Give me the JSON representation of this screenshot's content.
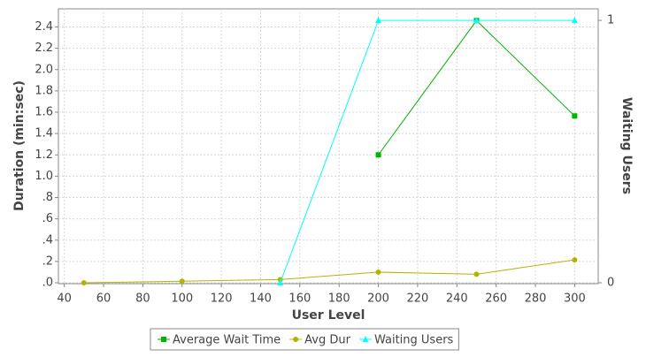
{
  "chart_data": {
    "type": "line",
    "x_label": "User Level",
    "y_label": "Duration (min:sec)",
    "y2_label": "Waiting Users",
    "xlim": [
      37,
      312
    ],
    "xticks": [
      40,
      60,
      80,
      100,
      120,
      140,
      160,
      180,
      200,
      220,
      240,
      260,
      280,
      300
    ],
    "ylim": [
      0,
      2.57
    ],
    "yticks": [
      {
        "value": 0,
        "label": ".0"
      },
      {
        "value": 0.2,
        "label": ".2"
      },
      {
        "value": 0.4,
        "label": ".4"
      },
      {
        "value": 0.6,
        "label": ".6"
      },
      {
        "value": 0.8,
        "label": ".8"
      },
      {
        "value": 1,
        "label": "1.0"
      },
      1.2,
      1.4,
      1.6,
      1.8,
      {
        "value": 2,
        "label": "2.0"
      },
      2.2,
      2.4
    ],
    "y2lim": [
      0,
      1.044
    ],
    "y2ticks": [
      0,
      1
    ],
    "grid": true,
    "legend": "bottom",
    "series": [
      {
        "name": "Average Wait Time",
        "color": "#00b400",
        "marker": "square",
        "x": [
          200,
          250,
          300
        ],
        "values": [
          1.2,
          2.46,
          1.565
        ]
      },
      {
        "name": "Avg Dur",
        "color": "#b4b400",
        "marker": "circle",
        "x": [
          50,
          100,
          150,
          200,
          250,
          300
        ],
        "values": [
          0,
          0.015,
          0.03,
          0.1,
          0.08,
          0.215
        ]
      },
      {
        "name": "Waiting Users",
        "color": "#00ffff",
        "marker": "triangle",
        "axis": "y2",
        "x": [
          150,
          200,
          250,
          300
        ],
        "values": [
          0,
          1,
          1,
          1
        ]
      }
    ]
  }
}
